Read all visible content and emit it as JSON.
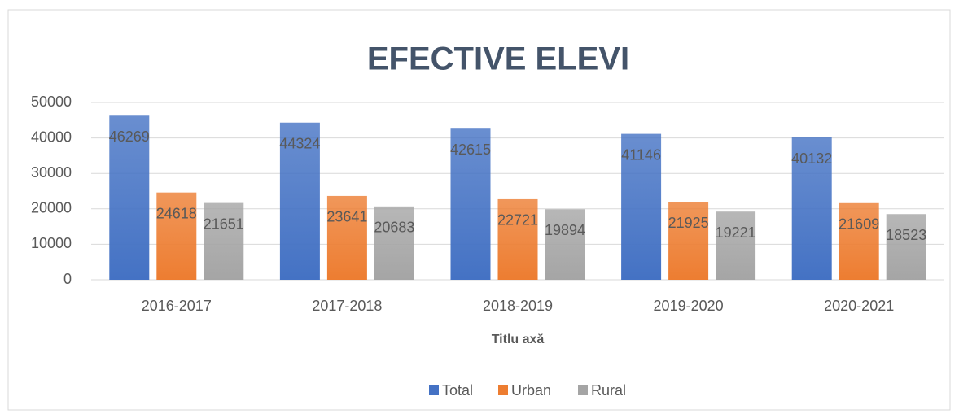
{
  "chart_data": {
    "type": "bar",
    "title": "EFECTIVE ELEVI",
    "x_label": "Titlu axă",
    "categories": [
      "2016-2017",
      "2017-2018",
      "2018-2019",
      "2019-2020",
      "2020-2021"
    ],
    "series": [
      {
        "name": "Total",
        "color": "#4472c4",
        "values": [
          46269,
          44324,
          42615,
          41146,
          40132
        ]
      },
      {
        "name": "Urban",
        "color": "#ed7d31",
        "values": [
          24618,
          23641,
          22721,
          21925,
          21609
        ]
      },
      {
        "name": "Rural",
        "color": "#a5a5a5",
        "values": [
          21651,
          20683,
          19894,
          19221,
          18523
        ]
      }
    ],
    "ylim": [
      0,
      50000
    ],
    "yticks": [
      0,
      10000,
      20000,
      30000,
      40000,
      50000
    ],
    "grid": true,
    "legend": "bottom"
  }
}
